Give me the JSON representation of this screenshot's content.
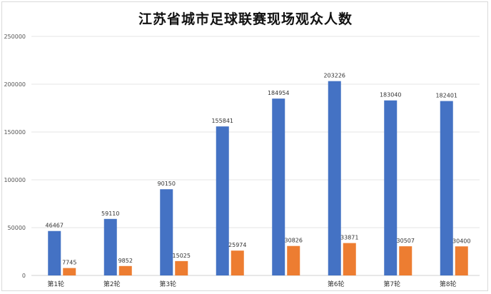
{
  "chart_data": {
    "type": "bar",
    "title": "江苏省城市足球联赛现场观众人数",
    "categories": [
      "第1轮",
      "第2轮",
      "第3轮",
      "",
      "",
      "第6轮",
      "第7轮",
      "第8轮"
    ],
    "series": [
      {
        "values": [
          46467,
          59110,
          90150,
          155841,
          184954,
          203226,
          183040,
          182401
        ],
        "color": "#4472c4"
      },
      {
        "values": [
          7745,
          9852,
          15025,
          25974,
          30826,
          33871,
          30507,
          30400
        ],
        "color": "#ed7d31"
      }
    ],
    "yticks": [
      "0",
      "50000",
      "100000",
      "150000",
      "200000",
      "250000"
    ],
    "ylim": [
      0,
      250000
    ],
    "grid": true,
    "legend": "none"
  }
}
